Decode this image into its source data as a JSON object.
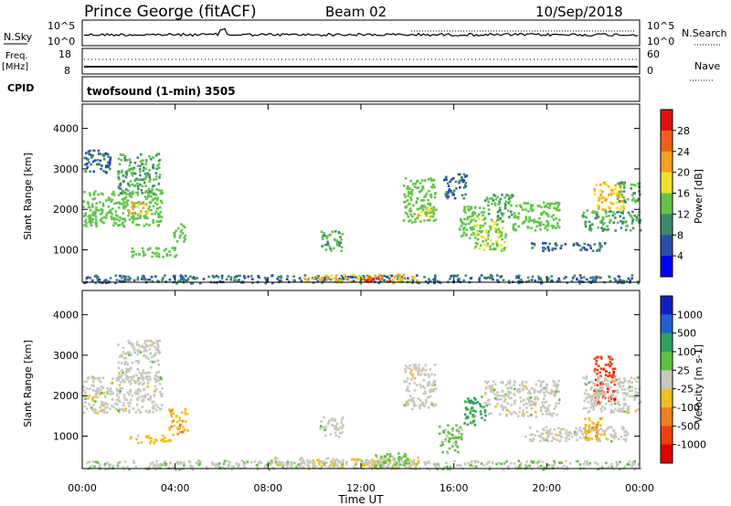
{
  "header": {
    "station": "Prince George (fitACF)",
    "beam": "Beam 02",
    "date": "10/Sep/2018"
  },
  "top_panels": {
    "nsky_label": "N.Sky",
    "nsky_ticks": [
      "10^5",
      "10^0"
    ],
    "nsearch_ticks": [
      "10^5",
      "10^0"
    ],
    "nsearch_label": "N.Search",
    "freq_label": "Freq.",
    "freq_units": "[MHz]",
    "freq_ticks": [
      "18",
      "8"
    ],
    "nave_ticks": [
      "60",
      "0"
    ],
    "nave_label": "Nave",
    "cpid_label": "CPID",
    "program": "twofsound (1-min) 3505"
  },
  "x_axis": {
    "label": "Time UT",
    "ticks": [
      "00:00",
      "04:00",
      "08:00",
      "12:00",
      "16:00",
      "20:00",
      "00:00"
    ]
  },
  "colors": {
    "power": [
      "#0000ff",
      "#2a4ea8",
      "#3e8a6c",
      "#62c44a",
      "#f0e030",
      "#f5a020",
      "#f06018",
      "#e01010"
    ],
    "velocity": [
      "#1020c0",
      "#2060d0",
      "#30a060",
      "#60c040",
      "#c8c8c0",
      "#f0c020",
      "#f08020",
      "#f04010",
      "#e00000"
    ]
  },
  "chart_data": [
    {
      "type": "heatmap",
      "title": "Power",
      "ylabel": "Slant Range [km]",
      "xlabel": "",
      "xlim": [
        0,
        24
      ],
      "ylim": [
        200,
        4600
      ],
      "yticks": [
        "1000",
        "2000",
        "3000",
        "4000"
      ],
      "colorbar": {
        "label": "Power [dB]",
        "ticks": [
          "4",
          "8",
          "12",
          "16",
          "20",
          "24",
          "28"
        ],
        "range": [
          0,
          32
        ]
      },
      "features": [
        {
          "t0": 0.0,
          "t1": 24.0,
          "r0": 200,
          "r1": 400,
          "value": 8
        },
        {
          "t0": 9.5,
          "t1": 14.5,
          "r0": 220,
          "r1": 420,
          "value": 20
        },
        {
          "t0": 12.0,
          "t1": 13.2,
          "r0": 240,
          "r1": 380,
          "value": 28
        },
        {
          "t0": 0.0,
          "t1": 3.4,
          "r0": 1600,
          "r1": 2500,
          "value": 14
        },
        {
          "t0": 1.5,
          "t1": 3.3,
          "r0": 2400,
          "r1": 3400,
          "value": 12
        },
        {
          "t0": 0.0,
          "t1": 1.2,
          "r0": 2900,
          "r1": 3500,
          "value": 8
        },
        {
          "t0": 1.8,
          "t1": 2.8,
          "r0": 1900,
          "r1": 2200,
          "value": 20
        },
        {
          "t0": 2.0,
          "t1": 4.0,
          "r0": 850,
          "r1": 1100,
          "value": 14
        },
        {
          "t0": 3.9,
          "t1": 4.4,
          "r0": 1200,
          "r1": 1700,
          "value": 14
        },
        {
          "t0": 10.2,
          "t1": 11.2,
          "r0": 1000,
          "r1": 1500,
          "value": 12
        },
        {
          "t0": 13.8,
          "t1": 15.2,
          "r0": 1700,
          "r1": 2800,
          "value": 14
        },
        {
          "t0": 14.4,
          "t1": 15.0,
          "r0": 1800,
          "r1": 2100,
          "value": 20
        },
        {
          "t0": 15.5,
          "t1": 16.5,
          "r0": 2300,
          "r1": 2900,
          "value": 8
        },
        {
          "t0": 16.2,
          "t1": 17.3,
          "r0": 1300,
          "r1": 2100,
          "value": 14
        },
        {
          "t0": 16.8,
          "t1": 18.2,
          "r0": 1000,
          "r1": 1800,
          "value": 16
        },
        {
          "t0": 17.3,
          "t1": 18.5,
          "r0": 1800,
          "r1": 2400,
          "value": 12
        },
        {
          "t0": 18.5,
          "t1": 20.5,
          "r0": 1500,
          "r1": 2200,
          "value": 14
        },
        {
          "t0": 19.3,
          "t1": 22.5,
          "r0": 1000,
          "r1": 1200,
          "value": 8
        },
        {
          "t0": 21.5,
          "t1": 24.0,
          "r0": 1500,
          "r1": 2000,
          "value": 12
        },
        {
          "t0": 22.0,
          "t1": 23.3,
          "r0": 2000,
          "r1": 2700,
          "value": 20
        },
        {
          "t0": 23.0,
          "t1": 24.0,
          "r0": 2200,
          "r1": 2700,
          "value": 12
        }
      ]
    },
    {
      "type": "heatmap",
      "title": "Velocity",
      "ylabel": "Slant Range [km]",
      "xlabel": "Time UT",
      "xlim": [
        0,
        24
      ],
      "ylim": [
        200,
        4600
      ],
      "yticks": [
        "1000",
        "2000",
        "3000",
        "4000"
      ],
      "colorbar": {
        "label": "Velocity [m s-1]",
        "ticks": [
          "1000",
          "500",
          "100",
          "25",
          "-25",
          "-100",
          "-500",
          "-1000"
        ],
        "range": [
          -1500,
          1500
        ]
      },
      "features": [
        {
          "t0": 0.0,
          "t1": 24.0,
          "r0": 200,
          "r1": 420,
          "value": 100
        },
        {
          "t0": 8.0,
          "t1": 14.5,
          "r0": 220,
          "r1": 500,
          "value": -100
        },
        {
          "t0": 12.5,
          "t1": 14.0,
          "r0": 250,
          "r1": 600,
          "value": 300
        },
        {
          "t0": 0.0,
          "t1": 3.4,
          "r0": 1600,
          "r1": 2500,
          "value": 0
        },
        {
          "t0": 1.5,
          "t1": 3.3,
          "r0": 2400,
          "r1": 3400,
          "value": 0
        },
        {
          "t0": 2.0,
          "t1": 3.8,
          "r0": 850,
          "r1": 1050,
          "value": -300
        },
        {
          "t0": 3.7,
          "t1": 4.5,
          "r0": 1050,
          "r1": 1700,
          "value": -400
        },
        {
          "t0": 10.2,
          "t1": 11.2,
          "r0": 1000,
          "r1": 1500,
          "value": 0
        },
        {
          "t0": 13.8,
          "t1": 15.2,
          "r0": 1700,
          "r1": 2800,
          "value": 0
        },
        {
          "t0": 15.3,
          "t1": 16.3,
          "r0": 600,
          "r1": 1300,
          "value": 200
        },
        {
          "t0": 16.4,
          "t1": 17.4,
          "r0": 1300,
          "r1": 2000,
          "value": 600
        },
        {
          "t0": 17.3,
          "t1": 20.5,
          "r0": 1500,
          "r1": 2400,
          "value": 0
        },
        {
          "t0": 19.0,
          "t1": 23.5,
          "r0": 900,
          "r1": 1250,
          "value": 0
        },
        {
          "t0": 21.6,
          "t1": 22.5,
          "r0": 900,
          "r1": 1500,
          "value": -400
        },
        {
          "t0": 22.0,
          "t1": 23.0,
          "r0": 1800,
          "r1": 3000,
          "value": -1000
        },
        {
          "t0": 21.5,
          "t1": 24.0,
          "r0": 1600,
          "r1": 2500,
          "value": 0
        }
      ]
    }
  ]
}
